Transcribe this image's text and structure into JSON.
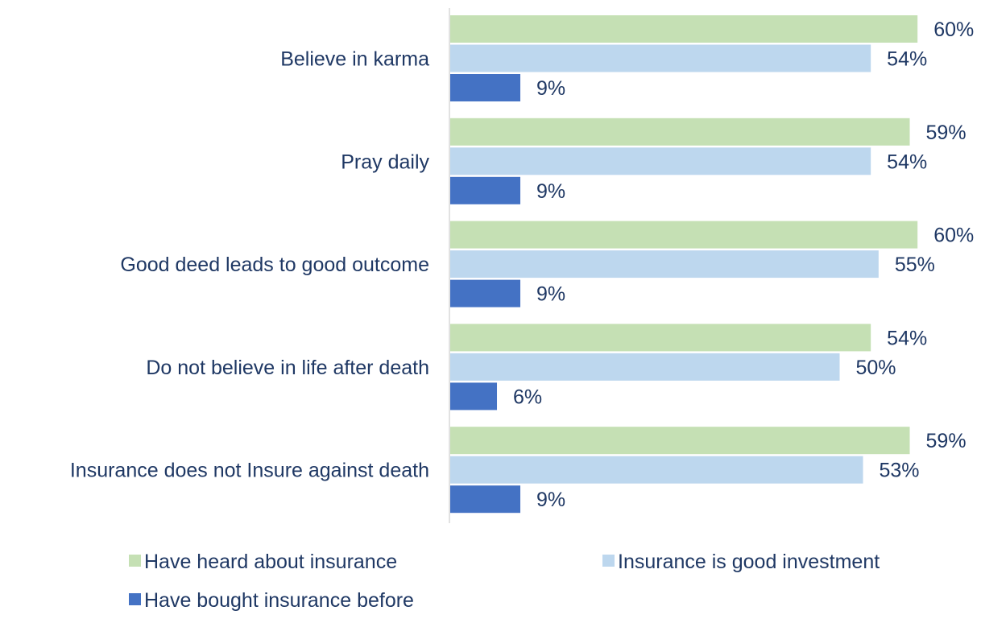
{
  "chart_data": {
    "type": "bar",
    "orientation": "horizontal",
    "categories": [
      "Believe in karma",
      "Pray daily",
      "Good deed leads to good outcome",
      "Do not believe in life after death",
      "Insurance does not Insure against death"
    ],
    "series": [
      {
        "name": "Have heard about insurance",
        "color": "#c5e0b4",
        "values": [
          60,
          59,
          60,
          54,
          59
        ],
        "labels": [
          "60%",
          "59%",
          "60%",
          "54%",
          "59%"
        ]
      },
      {
        "name": "Insurance is good investment",
        "color": "#bdd7ee",
        "values": [
          54,
          54,
          55,
          50,
          53
        ],
        "labels": [
          "54%",
          "54%",
          "55%",
          "50%",
          "53%"
        ]
      },
      {
        "name": "Have bought insurance before",
        "color": "#4472c4",
        "values": [
          9,
          9,
          9,
          6,
          9
        ],
        "labels": [
          "9%",
          "9%",
          "9%",
          "6%",
          "9%"
        ]
      }
    ],
    "value_unit": "%",
    "xlim": [
      0,
      60
    ],
    "grid": false,
    "legend_position": "bottom"
  }
}
